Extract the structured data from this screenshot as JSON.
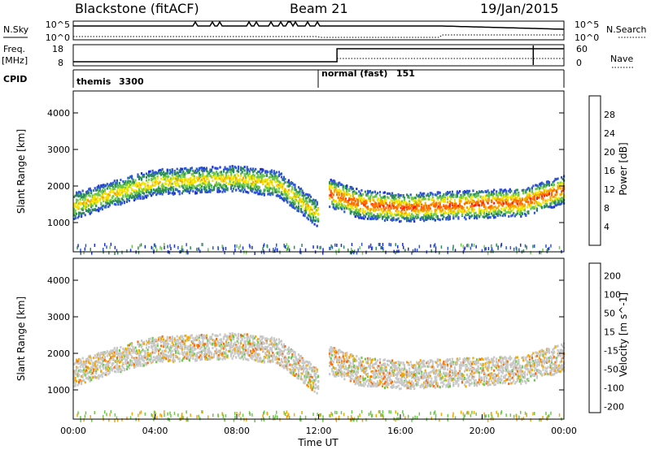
{
  "header": {
    "station": "Blackstone (fitACF)",
    "beam": "Beam 21",
    "date": "19/Jan/2015"
  },
  "status_panel": {
    "nsky_label": "N.Sky",
    "nsearch_label": "N.Search",
    "freq_label": "Freq.",
    "freq_unit": "[MHz]",
    "nave_label": "Nave",
    "cpid_label": "CPID",
    "noise_ticks_left": [
      "10^5",
      "10^0"
    ],
    "noise_ticks_right": [
      "10^5",
      "10^0"
    ],
    "freq_ticks": [
      "18",
      "8"
    ],
    "nave_ticks": [
      "60",
      "0"
    ],
    "cpid_segments": [
      {
        "name": "themis",
        "value": "3300",
        "start_hour": 0,
        "end_hour": 12.1
      },
      {
        "name": "normal (fast)",
        "value": "151",
        "start_hour": 12.1,
        "end_hour": 24
      }
    ]
  },
  "chart_data": [
    {
      "type": "heatmap",
      "panel": "power",
      "xlabel": "",
      "ylabel": "Slant Range [km]",
      "xlim": [
        0,
        24
      ],
      "ylim": [
        200,
        4600
      ],
      "y_ticks": [
        1000,
        2000,
        3000,
        4000
      ],
      "colorbar": {
        "label": "Power [dB]",
        "ticks": [
          4,
          8,
          12,
          16,
          20,
          24,
          28
        ],
        "range": [
          0,
          30
        ],
        "colors": [
          "#1a2fd6",
          "#2f55d8",
          "#2e8c5a",
          "#6cc84b",
          "#f2e300",
          "#f5a800",
          "#ff6a00",
          "#ff1a10"
        ]
      },
      "bands": [
        {
          "hours": [
            0,
            2,
            4,
            6,
            8,
            10,
            12
          ],
          "center_km": [
            1450,
            1800,
            2100,
            2150,
            2200,
            2050,
            1200
          ],
          "width_km": 500,
          "value_db": 10
        },
        {
          "hours": [
            12.5,
            14,
            16,
            18,
            20,
            22,
            24
          ],
          "center_km": [
            1800,
            1500,
            1400,
            1450,
            1500,
            1550,
            1900
          ],
          "width_km": 550,
          "value_db": 18
        }
      ]
    },
    {
      "type": "heatmap",
      "panel": "velocity",
      "xlabel": "Time UT",
      "ylabel": "Slant Range [km]",
      "xlim": [
        0,
        24
      ],
      "ylim": [
        200,
        4600
      ],
      "x_ticks": [
        "00:00",
        "04:00",
        "08:00",
        "12:00",
        "16:00",
        "20:00",
        "00:00"
      ],
      "y_ticks": [
        1000,
        2000,
        3000,
        4000
      ],
      "colorbar": {
        "label": "Velocity [m s^-1]",
        "ticks": [
          200,
          100,
          50,
          15,
          -15,
          -50,
          -100,
          -200
        ],
        "colors": [
          "#1a2fd6",
          "#2e8c5a",
          "#6cc84b",
          "#c8c8c8",
          "#f5a800",
          "#ff6a00",
          "#ff1a10"
        ]
      },
      "bands": [
        {
          "hours": [
            0,
            2,
            4,
            6,
            8,
            10,
            12
          ],
          "center_km": [
            1450,
            1800,
            2100,
            2150,
            2200,
            2050,
            1200
          ],
          "width_km": 500,
          "value_ms": 0
        },
        {
          "hours": [
            12.5,
            14,
            16,
            18,
            20,
            22,
            24
          ],
          "center_km": [
            1800,
            1500,
            1400,
            1450,
            1500,
            1550,
            1900
          ],
          "width_km": 550,
          "value_ms": 0
        }
      ]
    }
  ]
}
